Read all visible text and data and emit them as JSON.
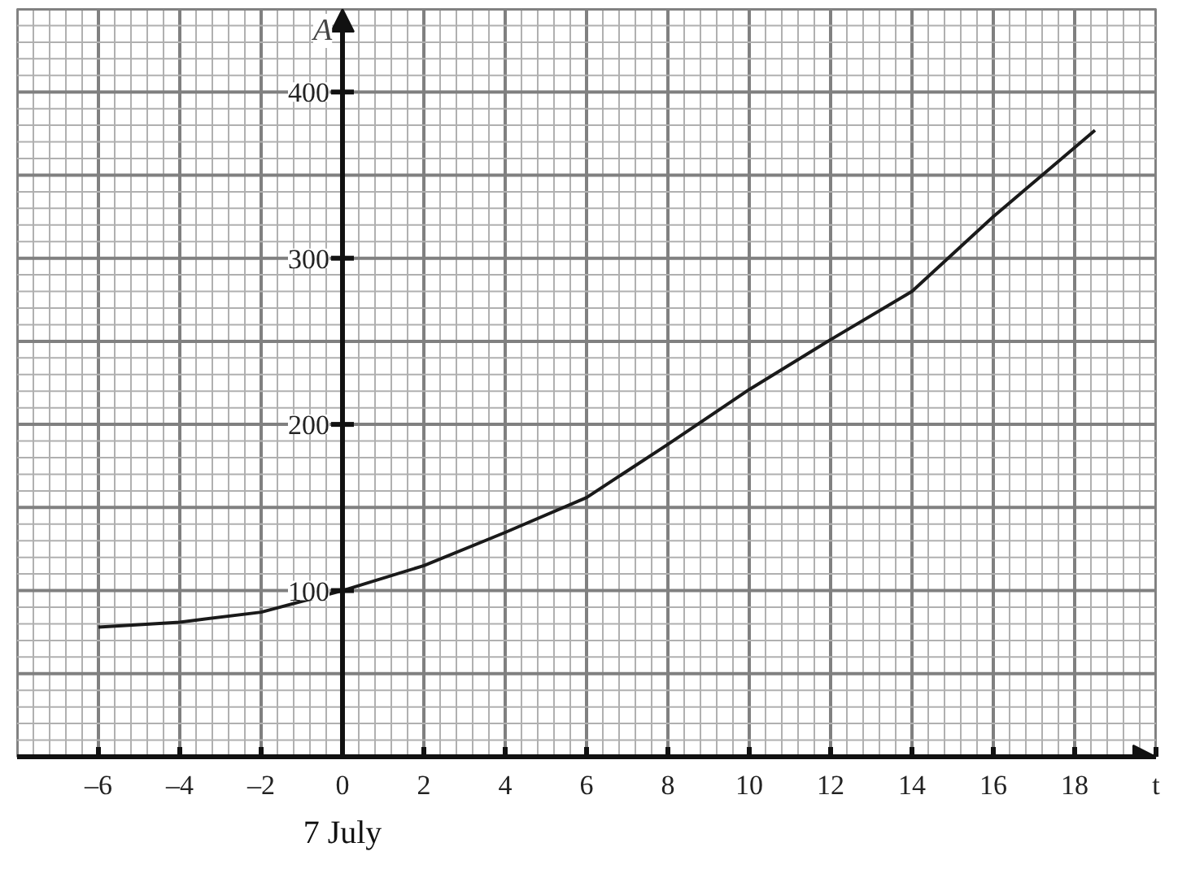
{
  "chart_data": {
    "type": "line",
    "xlabel": "t",
    "ylabel": "A",
    "x": [
      -6,
      -4,
      -2,
      0,
      2,
      4,
      6,
      8,
      10,
      12,
      14,
      16,
      18.5
    ],
    "series": [
      {
        "color": "#1a1a1a",
        "values": [
          78,
          81,
          87,
          100,
          115,
          135,
          156,
          188,
          221,
          251,
          280,
          325,
          377
        ]
      }
    ],
    "xlim": [
      -8,
      20
    ],
    "ylim": [
      0,
      450
    ],
    "xticks": [
      {
        "value": -6,
        "label": "–6"
      },
      {
        "value": -4,
        "label": "–4"
      },
      {
        "value": -2,
        "label": "–2"
      },
      0,
      2,
      4,
      6,
      8,
      10,
      12,
      14,
      16,
      18
    ],
    "yticks": [
      100,
      200,
      300,
      400
    ],
    "annotations": [
      "7 July"
    ],
    "grid": true,
    "marker": "none",
    "line_style": "solid"
  }
}
